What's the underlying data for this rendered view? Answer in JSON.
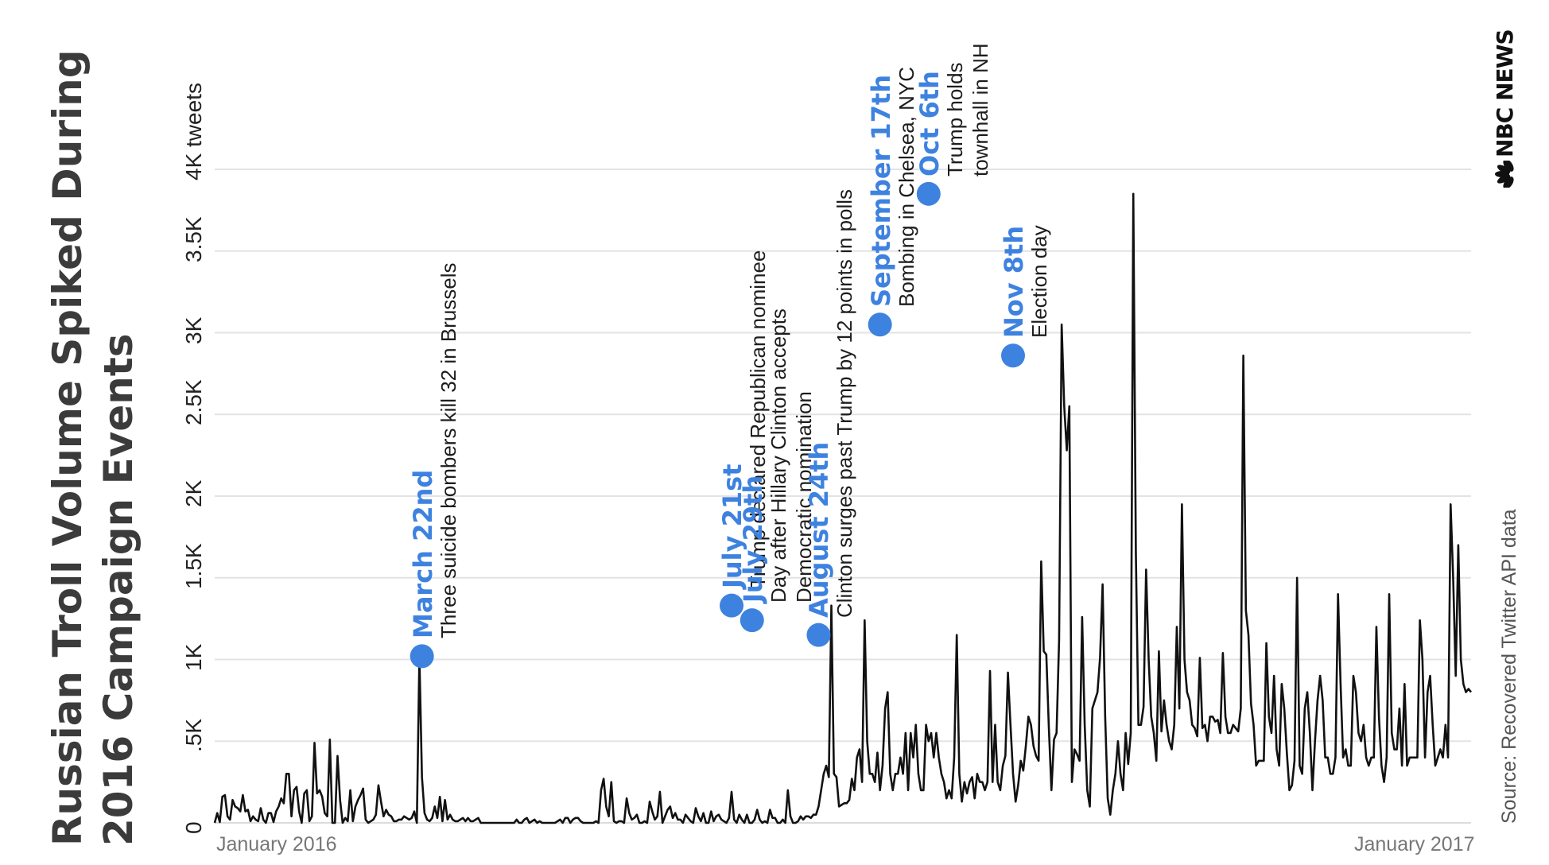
{
  "title_line1": "Russian Troll Volume Spiked During",
  "title_line2": "2016 Campaign Events",
  "source": "Source: Recovered Twitter API data",
  "logo": {
    "text": "NBC NEWS",
    "icon": "peacock-icon"
  },
  "colors": {
    "accent": "#3e82e0",
    "line": "#111111",
    "grid": "#e3e3e3"
  },
  "chart_data": {
    "type": "line",
    "ylim": [
      0,
      4000
    ],
    "yticks": [
      {
        "value": 0,
        "label": "0"
      },
      {
        "value": 500,
        "label": ".5K"
      },
      {
        "value": 1000,
        "label": "1K"
      },
      {
        "value": 1500,
        "label": "1.5K"
      },
      {
        "value": 2000,
        "label": "2K"
      },
      {
        "value": 2500,
        "label": "2.5K"
      },
      {
        "value": 3000,
        "label": "3K"
      },
      {
        "value": 3500,
        "label": "3.5K"
      },
      {
        "value": 4000,
        "label": "4K tweets"
      }
    ],
    "x_start_label": "January 2016",
    "x_end_label": "January 2017",
    "annotations": [
      {
        "date": "March 22nd",
        "lines": [
          "Three suicide bombers kill 32 in Brussels"
        ],
        "day": 81,
        "value": 1020
      },
      {
        "date": "July 21st",
        "lines": [
          "Trump declared Republican nominee"
        ],
        "day": 202,
        "value": 1330
      },
      {
        "date": "July 29th",
        "lines": [
          "Day after Hillary Clinton accepts",
          "Democratic nomination"
        ],
        "day": 210,
        "value": 1240
      },
      {
        "date": "August 24th",
        "lines": [
          "Clinton surges past Trump by 12 points in polls"
        ],
        "day": 236,
        "value": 1150
      },
      {
        "date": "September 17th",
        "lines": [
          "Bombing in Chelsea, NYC"
        ],
        "day": 260,
        "value": 3050
      },
      {
        "date": "Oct 6th",
        "lines": [
          "Trump holds",
          "townhall in NH"
        ],
        "day": 279,
        "value": 3850
      },
      {
        "date": "Nov 8th",
        "lines": [
          "Election day"
        ],
        "day": 312,
        "value": 2860
      }
    ],
    "series": [
      {
        "values": [
          0,
          60,
          5,
          160,
          170,
          40,
          20,
          140,
          100,
          90,
          70,
          170,
          70,
          80,
          10,
          40,
          20,
          10,
          90,
          20,
          0,
          60,
          60,
          5,
          70,
          100,
          150,
          120,
          300,
          300,
          40,
          200,
          220,
          70,
          0,
          180,
          200,
          10,
          40,
          490,
          180,
          200,
          160,
          60,
          40,
          510,
          0,
          0,
          410,
          140,
          0,
          30,
          10,
          200,
          10,
          100,
          140,
          170,
          210,
          20,
          0,
          10,
          20,
          50,
          230,
          130,
          40,
          80,
          50,
          40,
          10,
          10,
          20,
          20,
          40,
          30,
          20,
          30,
          70,
          0,
          1020,
          280,
          60,
          20,
          10,
          30,
          100,
          30,
          160,
          10,
          140,
          20,
          50,
          20,
          10,
          10,
          20,
          30,
          10,
          30,
          10,
          10,
          20,
          30,
          0,
          0,
          0,
          0,
          0,
          0,
          0,
          0,
          0,
          0,
          0,
          0,
          0,
          0,
          20,
          0,
          0,
          20,
          30,
          0,
          10,
          20,
          0,
          10,
          0,
          0,
          0,
          0,
          0,
          0,
          10,
          20,
          0,
          30,
          30,
          0,
          20,
          30,
          30,
          10,
          0,
          0,
          0,
          0,
          0,
          10,
          0,
          200,
          270,
          100,
          40,
          250,
          10,
          0,
          10,
          10,
          0,
          150,
          60,
          20,
          30,
          50,
          0,
          0,
          10,
          0,
          130,
          70,
          20,
          40,
          190,
          0,
          40,
          80,
          100,
          30,
          60,
          20,
          20,
          0,
          50,
          30,
          10,
          0,
          90,
          40,
          10,
          60,
          0,
          0,
          70,
          10,
          40,
          50,
          20,
          10,
          0,
          30,
          190,
          20,
          0,
          50,
          20,
          0,
          50,
          0,
          0,
          20,
          80,
          20,
          0,
          10,
          0,
          80,
          30,
          30,
          0,
          0,
          20,
          0,
          200,
          40,
          0,
          0,
          10,
          40,
          20,
          40,
          40,
          30,
          50,
          50,
          100,
          200,
          300,
          350,
          280,
          1330,
          300,
          280,
          100,
          110,
          120,
          120,
          140,
          270,
          200,
          400,
          450,
          250,
          1240,
          500,
          300,
          300,
          250,
          430,
          200,
          350,
          700,
          800,
          300,
          200,
          300,
          300,
          400,
          300,
          550,
          200,
          550,
          400,
          600,
          300,
          200,
          200,
          600,
          500,
          550,
          400,
          550,
          400,
          300,
          250,
          150,
          200,
          150,
          400,
          1150,
          300,
          130,
          250,
          180,
          250,
          280,
          150,
          300,
          250,
          250,
          200,
          250,
          930,
          250,
          600,
          250,
          200,
          350,
          410,
          920,
          600,
          300,
          130,
          230,
          380,
          320,
          470,
          650,
          600,
          470,
          410,
          380,
          1600,
          1050,
          1030,
          580,
          200,
          510,
          550,
          1120,
          3050,
          2550,
          2280,
          2550,
          250,
          450,
          420,
          380,
          1260,
          600,
          200,
          100,
          700,
          750,
          800,
          1010,
          1460,
          650,
          150,
          50,
          200,
          300,
          500,
          300,
          200,
          550,
          360,
          550,
          3850,
          1650,
          600,
          600,
          710,
          1550,
          1000,
          650,
          550,
          380,
          1050,
          560,
          750,
          600,
          500,
          450,
          600,
          1200,
          700,
          1950,
          1000,
          800,
          750,
          600,
          580,
          530,
          1010,
          580,
          600,
          500,
          650,
          650,
          620,
          630,
          550,
          1040,
          650,
          550,
          550,
          600,
          580,
          560,
          700,
          2860,
          1300,
          1150,
          730,
          600,
          350,
          380,
          380,
          380,
          1100,
          650,
          550,
          900,
          450,
          350,
          850,
          700,
          430,
          200,
          230,
          380,
          1500,
          350,
          300,
          700,
          800,
          550,
          200,
          500,
          750,
          900,
          750,
          400,
          400,
          300,
          300,
          400,
          1400,
          850,
          400,
          450,
          350,
          350,
          900,
          800,
          550,
          500,
          600,
          400,
          350,
          400,
          400,
          1200,
          650,
          350,
          250,
          400,
          1400,
          550,
          450,
          450,
          700,
          350,
          850,
          350,
          400,
          400,
          400,
          400,
          1240,
          1000,
          400,
          800,
          900,
          600,
          350,
          400,
          450,
          400,
          600,
          400,
          1950,
          1500,
          900,
          1700,
          1000,
          850,
          800,
          820,
          800
        ]
      }
    ]
  }
}
